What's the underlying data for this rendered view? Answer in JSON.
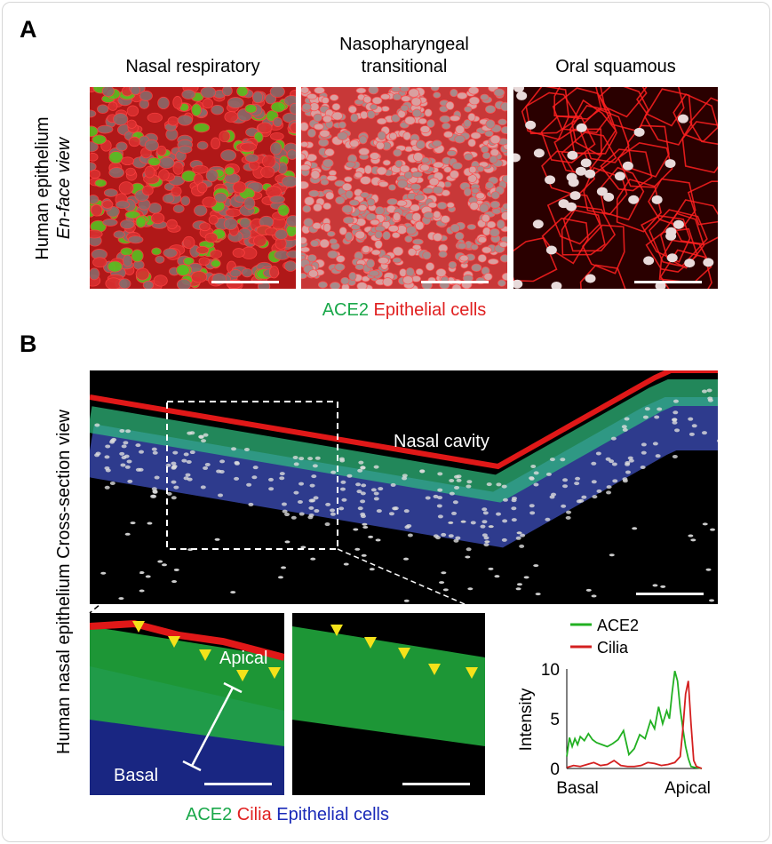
{
  "panel_a": {
    "letter": "A",
    "side_label_line1": "Human epithelium",
    "side_label_line2": "En-face view",
    "columns": [
      {
        "title_line1": "Nasal respiratory",
        "title_line2": ""
      },
      {
        "title_line1": "Nasopharyngeal",
        "title_line2": "transitional"
      },
      {
        "title_line1": "Oral squamous",
        "title_line2": ""
      }
    ],
    "legend": {
      "ace2": "ACE2",
      "epithelial": "Epithelial cells"
    }
  },
  "panel_b": {
    "letter": "B",
    "side_label": "Human nasal epithelium Cross-section view",
    "overview_label": "Nasal cavity",
    "inset_labels": {
      "apical": "Apical",
      "basal": "Basal"
    },
    "legend": {
      "ace2": "ACE2",
      "cilia": "Cilia",
      "epithelial": "Epithelial cells"
    }
  },
  "colors": {
    "ace2": "#22b022",
    "cilia": "#d42020",
    "epithelial": "#1a2ab8",
    "arrowhead": "#f4e21a"
  },
  "chart_data": {
    "type": "line",
    "ylabel": "Intensity",
    "x_tick_labels": [
      "Basal",
      "Apical"
    ],
    "yticks": [
      0,
      5,
      10
    ],
    "ylim": [
      0,
      10
    ],
    "xlim": [
      0,
      1
    ],
    "legend_placement": "top",
    "series": [
      {
        "name": "ACE2",
        "color": "#22b022",
        "x": [
          0,
          0.02,
          0.04,
          0.06,
          0.08,
          0.1,
          0.13,
          0.16,
          0.19,
          0.22,
          0.26,
          0.3,
          0.34,
          0.38,
          0.42,
          0.44,
          0.46,
          0.5,
          0.54,
          0.58,
          0.62,
          0.65,
          0.68,
          0.71,
          0.74,
          0.76,
          0.78,
          0.8,
          0.82,
          0.84,
          0.86,
          0.88,
          0.9,
          0.92,
          0.95,
          1.0
        ],
        "y": [
          1.2,
          3.1,
          2.2,
          3.0,
          2.4,
          3.2,
          2.8,
          3.5,
          2.9,
          2.6,
          2.4,
          2.2,
          2.5,
          2.9,
          3.8,
          2.6,
          1.4,
          2.0,
          3.4,
          3.0,
          4.8,
          4.0,
          6.2,
          4.5,
          5.8,
          5.0,
          7.6,
          9.8,
          8.8,
          6.0,
          4.0,
          2.2,
          1.0,
          0.2,
          0.1,
          0.0
        ]
      },
      {
        "name": "Cilia",
        "color": "#d42020",
        "x": [
          0,
          0.05,
          0.1,
          0.15,
          0.2,
          0.25,
          0.3,
          0.35,
          0.4,
          0.45,
          0.5,
          0.55,
          0.6,
          0.65,
          0.7,
          0.75,
          0.8,
          0.84,
          0.86,
          0.88,
          0.9,
          0.92,
          0.94,
          0.96,
          1.0
        ],
        "y": [
          0.1,
          0.3,
          0.2,
          0.4,
          0.6,
          0.3,
          0.4,
          0.8,
          0.3,
          0.2,
          0.2,
          0.3,
          0.6,
          0.5,
          0.3,
          0.4,
          0.6,
          1.2,
          4.0,
          7.5,
          8.8,
          4.5,
          0.8,
          0.2,
          0.0
        ]
      }
    ]
  }
}
